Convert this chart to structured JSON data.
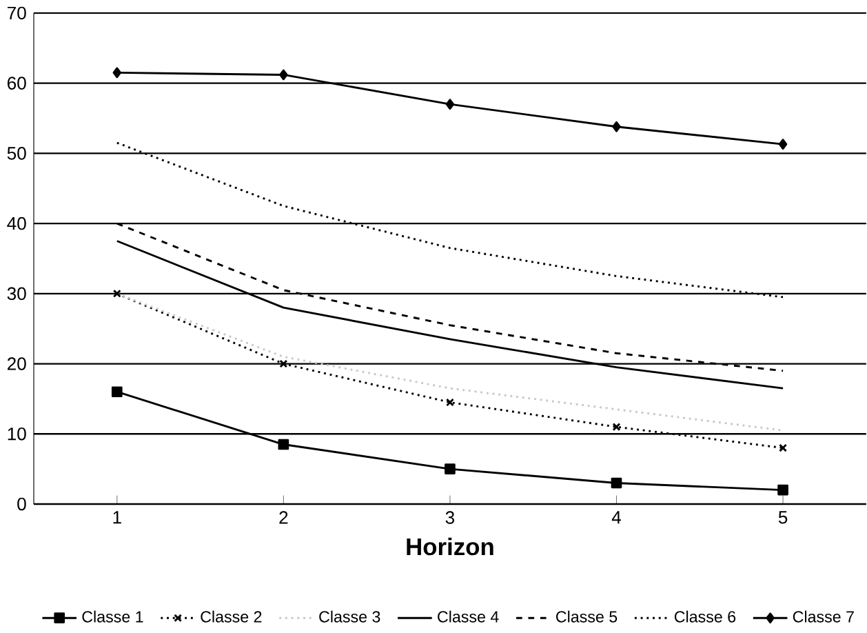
{
  "chart_data": {
    "type": "line",
    "xlabel": "**Horizon**",
    "categories": [
      "1",
      "2",
      "3",
      "4",
      "5"
    ],
    "ylim": [
      0,
      70
    ],
    "yticks": [
      0,
      10,
      20,
      30,
      40,
      50,
      60,
      70
    ],
    "grid": "y",
    "legend": "bottom",
    "series": [
      {
        "name": "Classe 1",
        "color": "#000000",
        "marker": "square",
        "line_style": "solid",
        "values": [
          16,
          8.5,
          5,
          3,
          2
        ]
      },
      {
        "name": "Classe 2",
        "color": "#000000",
        "marker": "cross",
        "line_style": "dotted",
        "values": [
          30,
          20,
          14.5,
          11,
          8
        ]
      },
      {
        "name": "Classe 3",
        "color": "#c8c8c8",
        "marker": "none",
        "line_style": "dotted",
        "values": [
          30,
          21,
          16.5,
          13.5,
          10.5
        ]
      },
      {
        "name": "Classe 4",
        "color": "#000000",
        "marker": "none",
        "line_style": "solid",
        "values": [
          37.5,
          28,
          23.5,
          19.5,
          16.5
        ]
      },
      {
        "name": "Classe 5",
        "color": "#000000",
        "marker": "none",
        "line_style": "dashed",
        "values": [
          40,
          30.5,
          25.5,
          21.5,
          19
        ]
      },
      {
        "name": "Classe 6",
        "color": "#000000",
        "marker": "none",
        "line_style": "dotted",
        "values": [
          51.5,
          42.5,
          36.5,
          32.5,
          29.5
        ]
      },
      {
        "name": "Classe 7",
        "color": "#000000",
        "marker": "diamond",
        "line_style": "solid",
        "values": [
          61.5,
          61.2,
          57,
          53.8,
          51.3
        ]
      }
    ]
  }
}
